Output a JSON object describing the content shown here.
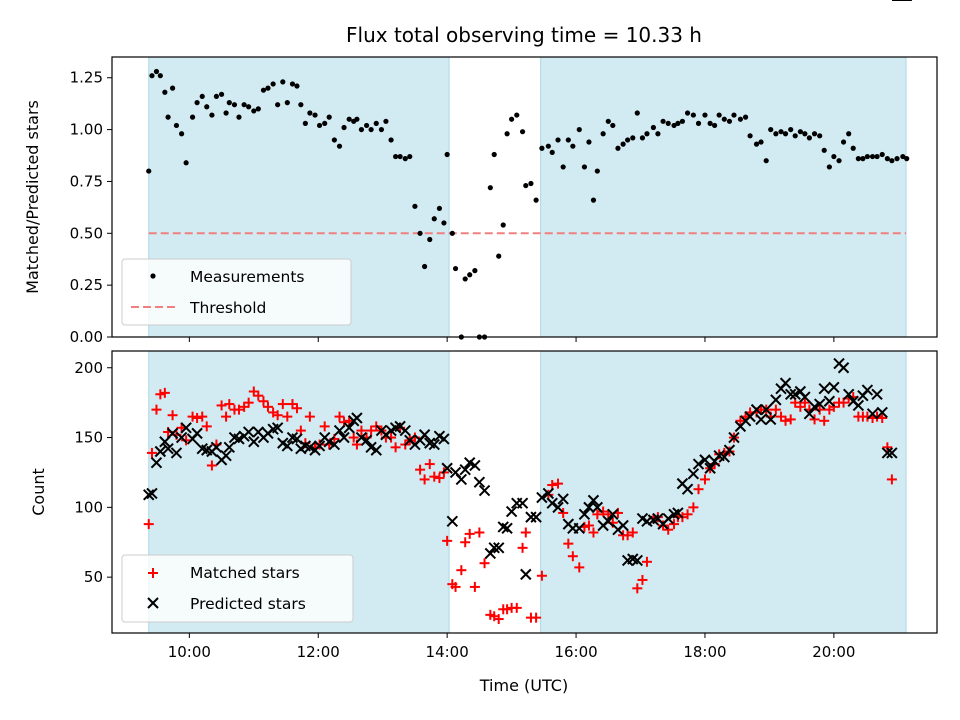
{
  "chart_data": [
    {
      "type": "scatter",
      "title": "Flux total observing time = 10.33 h",
      "xlabel": "",
      "ylabel": "Matched/Predicted stars",
      "xlim": [
        8.8,
        21.6
      ],
      "ylim": [
        0,
        1.35
      ],
      "yticks": [
        0.0,
        0.25,
        0.5,
        0.75,
        1.0,
        1.25
      ],
      "ytick_labels": [
        "0.00",
        "0.25",
        "0.50",
        "0.75",
        "1.00",
        "1.25"
      ],
      "shaded_spans": [
        [
          9.37,
          14.03
        ],
        [
          15.45,
          21.12
        ]
      ],
      "shade_color": "#add8e6",
      "threshold": {
        "name": "Threshold",
        "value": 0.5,
        "color": "#f08080",
        "style": "dashed"
      },
      "legend_position": "lower left",
      "series": [
        {
          "name": "Measurements",
          "marker": "dot",
          "color": "#000000",
          "x": [
            9.37,
            9.42,
            9.49,
            9.55,
            9.62,
            9.67,
            9.74,
            9.8,
            9.88,
            9.95,
            10.05,
            10.12,
            10.2,
            10.27,
            10.35,
            10.42,
            10.5,
            10.57,
            10.62,
            10.7,
            10.77,
            10.85,
            10.92,
            11.0,
            11.07,
            11.15,
            11.22,
            11.3,
            11.37,
            11.45,
            11.52,
            11.6,
            11.67,
            11.73,
            11.8,
            11.87,
            11.95,
            12.02,
            12.1,
            12.17,
            12.25,
            12.33,
            12.4,
            12.48,
            12.55,
            12.6,
            12.67,
            12.75,
            12.82,
            12.9,
            12.98,
            13.05,
            13.13,
            13.2,
            13.27,
            13.35,
            13.42,
            13.5,
            13.58,
            13.65,
            13.73,
            13.8,
            13.88,
            13.95,
            14.0,
            14.08,
            14.13,
            14.22,
            14.28,
            14.35,
            14.43,
            14.5,
            14.58,
            14.67,
            14.73,
            14.8,
            14.87,
            14.93,
            15.0,
            15.08,
            15.17,
            15.22,
            15.3,
            15.38,
            15.47,
            15.57,
            15.63,
            15.72,
            15.8,
            15.88,
            15.95,
            16.05,
            16.13,
            16.2,
            16.27,
            16.33,
            16.42,
            16.5,
            16.57,
            16.65,
            16.73,
            16.8,
            16.88,
            16.95,
            17.03,
            17.1,
            17.2,
            17.27,
            17.35,
            17.43,
            17.52,
            17.58,
            17.65,
            17.73,
            17.82,
            17.9,
            18.0,
            18.08,
            18.15,
            18.22,
            18.3,
            18.38,
            18.45,
            18.55,
            18.63,
            18.7,
            18.8,
            18.87,
            18.95,
            19.02,
            19.1,
            19.18,
            19.25,
            19.33,
            19.4,
            19.48,
            19.55,
            19.62,
            19.7,
            19.78,
            19.85,
            19.93,
            20.0,
            20.08,
            20.15,
            20.23,
            20.3,
            20.38,
            20.45,
            20.52,
            20.6,
            20.67,
            20.75,
            20.83,
            20.9,
            20.98,
            21.07,
            21.13
          ],
          "y": [
            0.8,
            1.26,
            1.28,
            1.26,
            1.18,
            1.06,
            1.2,
            1.02,
            0.98,
            0.84,
            1.06,
            1.13,
            1.16,
            1.11,
            1.07,
            1.16,
            1.17,
            1.08,
            1.13,
            1.12,
            1.06,
            1.12,
            1.11,
            1.09,
            1.1,
            1.19,
            1.2,
            1.22,
            1.12,
            1.23,
            1.13,
            1.22,
            1.21,
            1.12,
            1.03,
            1.08,
            1.07,
            1.02,
            1.03,
            1.06,
            0.95,
            0.92,
            1.01,
            1.05,
            1.04,
            1.05,
            1.0,
            1.02,
            1.0,
            1.03,
            1.0,
            1.04,
            0.95,
            0.87,
            0.87,
            0.86,
            0.87,
            0.63,
            0.5,
            0.34,
            0.47,
            0.57,
            0.62,
            0.55,
            0.88,
            0.5,
            0.33,
            0.0,
            0.28,
            0.3,
            0.32,
            0.0,
            0.0,
            0.72,
            0.88,
            0.39,
            0.54,
            0.98,
            1.05,
            1.07,
            0.99,
            0.73,
            0.74,
            0.66,
            0.91,
            0.92,
            0.89,
            0.95,
            0.82,
            0.95,
            0.92,
            1.0,
            0.82,
            0.94,
            0.66,
            0.8,
            0.98,
            1.04,
            1.02,
            0.91,
            0.93,
            0.95,
            0.96,
            1.08,
            0.96,
            0.98,
            1.01,
            0.98,
            1.04,
            1.03,
            1.02,
            1.03,
            1.04,
            1.08,
            1.07,
            1.03,
            1.07,
            1.03,
            1.02,
            1.07,
            1.05,
            1.04,
            1.07,
            1.05,
            1.06,
            0.97,
            0.93,
            0.94,
            0.85,
            1.0,
            0.98,
            0.99,
            0.98,
            1.0,
            0.97,
            0.99,
            0.98,
            0.96,
            0.98,
            0.97,
            0.9,
            0.82,
            0.87,
            0.85,
            0.94,
            0.98,
            0.91,
            0.86,
            0.86,
            0.87,
            0.87,
            0.87,
            0.88,
            0.86,
            0.85,
            0.86,
            0.87,
            0.86
          ],
          "legend_note": ""
        }
      ]
    },
    {
      "type": "scatter",
      "title": "",
      "xlabel": "Time (UTC)",
      "ylabel": "Count",
      "xlim": [
        8.8,
        21.6
      ],
      "ylim": [
        10,
        212
      ],
      "xticks": [
        10,
        12,
        14,
        16,
        18,
        20
      ],
      "xtick_labels": [
        "10:00",
        "12:00",
        "14:00",
        "16:00",
        "18:00",
        "20:00"
      ],
      "yticks": [
        50,
        100,
        150,
        200
      ],
      "ytick_labels": [
        "50",
        "100",
        "150",
        "200"
      ],
      "shaded_spans": [
        [
          9.37,
          14.03
        ],
        [
          15.45,
          21.12
        ]
      ],
      "shade_color": "#add8e6",
      "legend_position": "lower left",
      "x": [
        9.37,
        9.42,
        9.49,
        9.55,
        9.62,
        9.67,
        9.74,
        9.8,
        9.88,
        9.95,
        10.05,
        10.12,
        10.2,
        10.27,
        10.35,
        10.42,
        10.5,
        10.57,
        10.62,
        10.7,
        10.77,
        10.85,
        10.92,
        11.0,
        11.07,
        11.15,
        11.22,
        11.3,
        11.37,
        11.45,
        11.52,
        11.6,
        11.67,
        11.73,
        11.8,
        11.87,
        11.95,
        12.02,
        12.1,
        12.17,
        12.25,
        12.33,
        12.4,
        12.48,
        12.55,
        12.6,
        12.67,
        12.75,
        12.82,
        12.9,
        12.98,
        13.05,
        13.13,
        13.2,
        13.27,
        13.35,
        13.42,
        13.5,
        13.58,
        13.65,
        13.73,
        13.8,
        13.88,
        13.95,
        14.0,
        14.08,
        14.13,
        14.22,
        14.28,
        14.35,
        14.43,
        14.5,
        14.58,
        14.67,
        14.73,
        14.8,
        14.87,
        14.93,
        15.0,
        15.08,
        15.17,
        15.22,
        15.3,
        15.38,
        15.47,
        15.57,
        15.63,
        15.72,
        15.8,
        15.88,
        15.95,
        16.05,
        16.13,
        16.2,
        16.27,
        16.33,
        16.42,
        16.5,
        16.57,
        16.65,
        16.73,
        16.8,
        16.88,
        16.95,
        17.03,
        17.1,
        17.2,
        17.27,
        17.35,
        17.43,
        17.52,
        17.58,
        17.65,
        17.73,
        17.82,
        17.9,
        18.0,
        18.08,
        18.15,
        18.22,
        18.3,
        18.38,
        18.45,
        18.55,
        18.63,
        18.7,
        18.8,
        18.87,
        18.95,
        19.02,
        19.1,
        19.18,
        19.25,
        19.33,
        19.4,
        19.48,
        19.55,
        19.62,
        19.7,
        19.78,
        19.85,
        19.93,
        20.0,
        20.08,
        20.15,
        20.23,
        20.3,
        20.38,
        20.45,
        20.52,
        20.6,
        20.67,
        20.75,
        20.83,
        20.9,
        20.98,
        21.07,
        21.13
      ],
      "series": [
        {
          "name": "Matched stars",
          "marker": "plus",
          "color": "#ff0000",
          "values": [
            88,
            139,
            170,
            181,
            182,
            154,
            166,
            152,
            157,
            148,
            165,
            164,
            165,
            158,
            130,
            145,
            173,
            165,
            174,
            170,
            170,
            172,
            175,
            183,
            180,
            176,
            172,
            168,
            166,
            174,
            165,
            174,
            171,
            155,
            146,
            165,
            143,
            145,
            158,
            145,
            149,
            165,
            161,
            162,
            150,
            145,
            155,
            150,
            155,
            158,
            155,
            150,
            150,
            143,
            157,
            145,
            148,
            150,
            127,
            120,
            131,
            122,
            121,
            125,
            76,
            45,
            43,
            55,
            75,
            81,
            43,
            82,
            60,
            23,
            22,
            20,
            27,
            27,
            28,
            28,
            71,
            82,
            21,
            21,
            51,
            109,
            116,
            117,
            96,
            74,
            65,
            57,
            86,
            87,
            82,
            95,
            97,
            95,
            89,
            96,
            80,
            80,
            82,
            42,
            48,
            61,
            92,
            93,
            87,
            84,
            88,
            93,
            93,
            95,
            100,
            113,
            120,
            128,
            131,
            138,
            139,
            140,
            150,
            162,
            165,
            168,
            168,
            170,
            170,
            165,
            170,
            165,
            162,
            163,
            175,
            172,
            175,
            170,
            163,
            170,
            162,
            170,
            172,
            175,
            175,
            178,
            179,
            165,
            165,
            165,
            164,
            165,
            164,
            143,
            120
          ],
          "legend_note": ""
        },
        {
          "name": "Predicted stars",
          "marker": "x",
          "color": "#000000",
          "values": [
            109,
            110,
            132,
            140,
            147,
            142,
            153,
            139,
            150,
            157,
            149,
            153,
            142,
            141,
            140,
            143,
            134,
            137,
            143,
            150,
            149,
            151,
            154,
            147,
            154,
            150,
            153,
            156,
            157,
            146,
            144,
            150,
            149,
            142,
            144,
            143,
            141,
            144,
            150,
            147,
            145,
            155,
            150,
            157,
            162,
            164,
            150,
            148,
            143,
            141,
            155,
            152,
            155,
            157,
            158,
            155,
            148,
            145,
            148,
            152,
            146,
            145,
            151,
            149,
            128,
            90,
            125,
            120,
            127,
            132,
            130,
            118,
            112,
            67,
            71,
            71,
            86,
            85,
            97,
            103,
            103,
            52,
            93,
            93,
            107,
            110,
            103,
            100,
            106,
            88,
            85,
            85,
            95,
            100,
            105,
            100,
            87,
            90,
            95,
            84,
            87,
            62,
            63,
            62,
            92,
            90,
            91,
            92,
            88,
            92,
            95,
            96,
            117,
            113,
            124,
            131,
            134,
            128,
            133,
            137,
            136,
            141,
            150,
            158,
            162,
            165,
            170,
            163,
            170,
            163,
            177,
            185,
            189,
            181,
            181,
            183,
            179,
            167,
            172,
            174,
            185,
            176,
            186,
            203,
            200,
            181,
            176,
            173,
            180,
            184,
            167,
            181,
            168,
            139,
            139
          ],
          "legend_note": ""
        }
      ]
    }
  ]
}
